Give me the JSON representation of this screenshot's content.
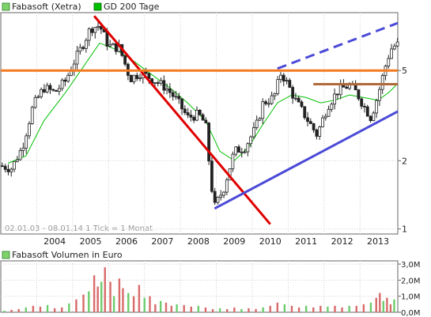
{
  "chart_data": [
    {
      "type": "candlestick",
      "legend": [
        {
          "label": "Fabasoft (Xetra)",
          "color": "#7ed46b"
        },
        {
          "label": "GD 200 Tage",
          "color": "#00c000"
        }
      ],
      "footer_note": "02.01.03 - 08.01.14   1 Tick = 1 Monat",
      "x_tick_labels": [
        "2004",
        "2005",
        "2006",
        "2007",
        "2008",
        "2009",
        "2010",
        "2011",
        "2012",
        "2013"
      ],
      "y_tick_labels": [
        {
          "label": "1",
          "value": 1
        },
        {
          "label": "2",
          "value": 2
        },
        {
          "label": "5",
          "value": 5
        }
      ],
      "y_scale": "log",
      "ylim": [
        0.95,
        9
      ],
      "x_range_years": [
        2003.0,
        2014.05
      ],
      "series_close": [
        [
          2003.0,
          1.9
        ],
        [
          2003.3,
          1.85
        ],
        [
          2003.6,
          2.3
        ],
        [
          2003.9,
          3.5
        ],
        [
          2004.2,
          4.2
        ],
        [
          2004.5,
          4.0
        ],
        [
          2004.8,
          4.5
        ],
        [
          2005.0,
          5.3
        ],
        [
          2005.3,
          6.6
        ],
        [
          2005.5,
          7.7
        ],
        [
          2005.75,
          7.9
        ],
        [
          2006.0,
          6.4
        ],
        [
          2006.3,
          6.3
        ],
        [
          2006.6,
          4.6
        ],
        [
          2006.9,
          4.9
        ],
        [
          2007.3,
          4.5
        ],
        [
          2007.6,
          4.2
        ],
        [
          2007.9,
          3.7
        ],
        [
          2008.2,
          3.1
        ],
        [
          2008.5,
          3.2
        ],
        [
          2008.7,
          2.9
        ],
        [
          2008.85,
          1.6
        ],
        [
          2008.95,
          1.25
        ],
        [
          2009.2,
          1.5
        ],
        [
          2009.5,
          2.2
        ],
        [
          2009.8,
          2.3
        ],
        [
          2010.1,
          2.8
        ],
        [
          2010.3,
          3.6
        ],
        [
          2010.6,
          3.8
        ],
        [
          2010.8,
          4.9
        ],
        [
          2011.0,
          4.3
        ],
        [
          2011.2,
          3.7
        ],
        [
          2011.5,
          3.1
        ],
        [
          2011.8,
          2.6
        ],
        [
          2012.1,
          3.5
        ],
        [
          2012.4,
          4.1
        ],
        [
          2012.7,
          4.3
        ],
        [
          2012.9,
          4.0
        ],
        [
          2013.1,
          3.5
        ],
        [
          2013.3,
          3.1
        ],
        [
          2013.5,
          3.9
        ],
        [
          2013.7,
          5.2
        ],
        [
          2013.85,
          6.2
        ],
        [
          2014.0,
          6.5
        ]
      ],
      "series_ma200": [
        [
          2003.2,
          1.95
        ],
        [
          2003.7,
          2.1
        ],
        [
          2004.2,
          3.0
        ],
        [
          2004.8,
          4.0
        ],
        [
          2005.3,
          5.2
        ],
        [
          2005.75,
          6.6
        ],
        [
          2006.2,
          6.2
        ],
        [
          2006.7,
          5.5
        ],
        [
          2007.2,
          4.8
        ],
        [
          2007.7,
          4.2
        ],
        [
          2008.2,
          3.6
        ],
        [
          2008.7,
          3.0
        ],
        [
          2009.1,
          2.2
        ],
        [
          2009.5,
          2.0
        ],
        [
          2009.9,
          2.3
        ],
        [
          2010.3,
          2.9
        ],
        [
          2010.7,
          3.6
        ],
        [
          2011.1,
          3.9
        ],
        [
          2011.5,
          3.8
        ],
        [
          2011.9,
          3.6
        ],
        [
          2012.3,
          3.7
        ],
        [
          2012.7,
          3.9
        ],
        [
          2013.1,
          3.8
        ],
        [
          2013.5,
          3.7
        ],
        [
          2013.8,
          4.0
        ],
        [
          2014.0,
          4.3
        ]
      ],
      "trendlines": [
        {
          "name": "downtrend",
          "color": "#e00000",
          "style": "solid",
          "from": [
            2005.6,
            8.7
          ],
          "to": [
            2010.5,
            1.05
          ]
        },
        {
          "name": "uptrend-support",
          "color": "#4a4ad8",
          "style": "solid",
          "from": [
            2008.95,
            1.23
          ],
          "to": [
            2014.05,
            3.3
          ]
        },
        {
          "name": "uptrend-parallel",
          "color": "#4a4ad8",
          "style": "dashed",
          "from": [
            2010.7,
            5.1
          ],
          "to": [
            2014.05,
            8.1
          ]
        },
        {
          "name": "resistance-long",
          "color": "#f47a20",
          "style": "solid",
          "from": [
            2003.0,
            5.0
          ],
          "to": [
            2014.05,
            5.0
          ]
        },
        {
          "name": "resistance-short",
          "color": "#b06a3a",
          "style": "solid",
          "from": [
            2011.7,
            4.35
          ],
          "to": [
            2014.05,
            4.35
          ]
        }
      ]
    },
    {
      "type": "bar",
      "title": "Fabasoft Volumen in Euro",
      "legend_color": "#7ed46b",
      "y_tick_labels": [
        {
          "label": "3,0M",
          "value": 3.0
        },
        {
          "label": "2,0M",
          "value": 2.0
        },
        {
          "label": "1,0M",
          "value": 1.0
        },
        {
          "label": "0,0M",
          "value": 0.0
        }
      ],
      "ylim": [
        0,
        3.2
      ],
      "unit": "M EUR",
      "x_range_years": [
        2003.0,
        2014.05
      ],
      "bars": [
        [
          2003.1,
          0.1
        ],
        [
          2003.3,
          0.15
        ],
        [
          2003.5,
          0.2
        ],
        [
          2003.7,
          0.3
        ],
        [
          2003.9,
          0.4
        ],
        [
          2004.1,
          0.35
        ],
        [
          2004.3,
          0.45
        ],
        [
          2004.5,
          0.25
        ],
        [
          2004.7,
          0.3
        ],
        [
          2004.9,
          0.55
        ],
        [
          2005.1,
          0.8
        ],
        [
          2005.3,
          1.1
        ],
        [
          2005.45,
          1.3
        ],
        [
          2005.6,
          2.3
        ],
        [
          2005.7,
          1.6
        ],
        [
          2005.8,
          1.9
        ],
        [
          2005.9,
          2.8
        ],
        [
          2006.05,
          1.9
        ],
        [
          2006.15,
          1.0
        ],
        [
          2006.3,
          2.1
        ],
        [
          2006.4,
          1.5
        ],
        [
          2006.55,
          1.2
        ],
        [
          2006.7,
          1.0
        ],
        [
          2006.85,
          1.7
        ],
        [
          2007.0,
          0.9
        ],
        [
          2007.15,
          1.0
        ],
        [
          2007.3,
          0.5
        ],
        [
          2007.45,
          0.7
        ],
        [
          2007.6,
          0.6
        ],
        [
          2007.75,
          0.4
        ],
        [
          2007.9,
          0.5
        ],
        [
          2008.1,
          0.45
        ],
        [
          2008.3,
          0.35
        ],
        [
          2008.5,
          0.4
        ],
        [
          2008.7,
          0.3
        ],
        [
          2008.9,
          0.2
        ],
        [
          2009.1,
          0.25
        ],
        [
          2009.3,
          0.2
        ],
        [
          2009.5,
          0.3
        ],
        [
          2009.7,
          0.2
        ],
        [
          2009.9,
          0.25
        ],
        [
          2010.1,
          0.2
        ],
        [
          2010.3,
          0.3
        ],
        [
          2010.5,
          0.4
        ],
        [
          2010.7,
          0.6
        ],
        [
          2010.9,
          0.5
        ],
        [
          2011.1,
          0.4
        ],
        [
          2011.3,
          0.3
        ],
        [
          2011.5,
          0.4
        ],
        [
          2011.7,
          0.3
        ],
        [
          2011.9,
          0.4
        ],
        [
          2012.1,
          0.35
        ],
        [
          2012.3,
          0.4
        ],
        [
          2012.5,
          0.3
        ],
        [
          2012.7,
          0.4
        ],
        [
          2012.9,
          0.4
        ],
        [
          2013.1,
          0.5
        ],
        [
          2013.3,
          0.6
        ],
        [
          2013.45,
          0.9
        ],
        [
          2013.55,
          1.2
        ],
        [
          2013.65,
          0.7
        ],
        [
          2013.75,
          0.9
        ],
        [
          2013.85,
          0.5
        ],
        [
          2013.95,
          0.8
        ]
      ]
    }
  ]
}
